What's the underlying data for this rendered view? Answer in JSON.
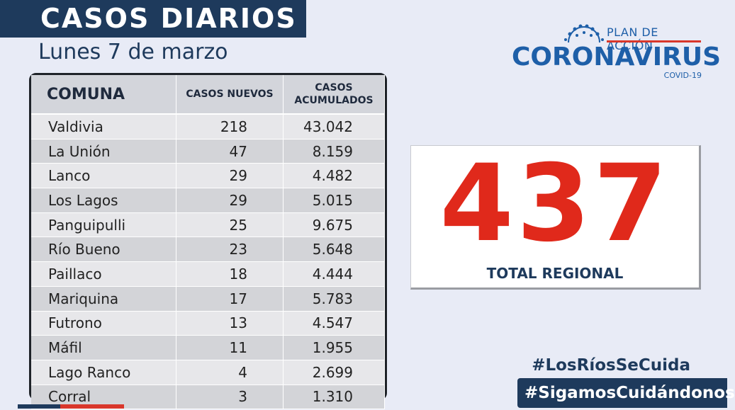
{
  "header": {
    "title": "CASOS DIARIOS",
    "date": "Lunes 7 de marzo"
  },
  "logo": {
    "top": "PLAN DE ACCIÓN",
    "main": "CORONAVIRUS",
    "sub": "COVID-19"
  },
  "table": {
    "headers": [
      "COMUNA",
      "CASOS NUEVOS",
      "CASOS ACUMULADOS"
    ],
    "rows": [
      {
        "comuna": "Valdivia",
        "nuevos": "218",
        "acumulados": "43.042"
      },
      {
        "comuna": "La Unión",
        "nuevos": "47",
        "acumulados": "8.159"
      },
      {
        "comuna": "Lanco",
        "nuevos": "29",
        "acumulados": "4.482"
      },
      {
        "comuna": "Los Lagos",
        "nuevos": "29",
        "acumulados": "5.015"
      },
      {
        "comuna": "Panguipulli",
        "nuevos": "25",
        "acumulados": "9.675"
      },
      {
        "comuna": "Río Bueno",
        "nuevos": "23",
        "acumulados": "5.648"
      },
      {
        "comuna": "Paillaco",
        "nuevos": "18",
        "acumulados": "4.444"
      },
      {
        "comuna": "Mariquina",
        "nuevos": "17",
        "acumulados": "5.783"
      },
      {
        "comuna": "Futrono",
        "nuevos": "13",
        "acumulados": "4.547"
      },
      {
        "comuna": "Máfil",
        "nuevos": "11",
        "acumulados": "1.955"
      },
      {
        "comuna": "Lago Ranco",
        "nuevos": "4",
        "acumulados": "2.699"
      },
      {
        "comuna": "Corral",
        "nuevos": "3",
        "acumulados": "1.310"
      }
    ]
  },
  "total": {
    "value": "437",
    "label": "TOTAL REGIONAL"
  },
  "hashtags": {
    "first": "#LosRíosSeCuida",
    "second": "#SigamosCuidándonos"
  },
  "colors": {
    "navy": "#1e3a5c",
    "red": "#e0291b",
    "logo_blue": "#1e5fa8"
  }
}
